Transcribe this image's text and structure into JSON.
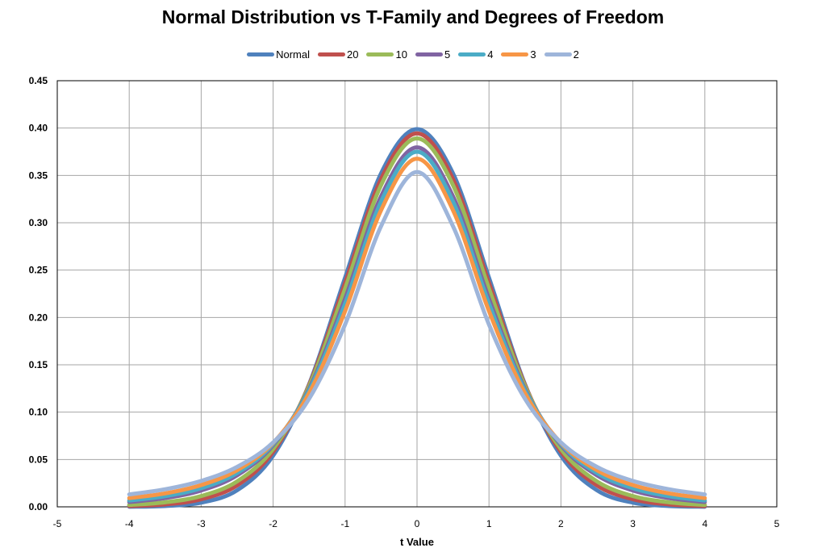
{
  "chart_data": {
    "type": "line",
    "title": "Normal Distribution vs T-Family and Degrees of Freedom",
    "xlabel": "t Value",
    "ylabel": "",
    "xlim": [
      -5,
      5
    ],
    "ylim": [
      0,
      0.45
    ],
    "xticks": [
      "-5",
      "-4",
      "-3",
      "-2",
      "-1",
      "0",
      "1",
      "2",
      "3",
      "4",
      "5"
    ],
    "yticks": [
      "0.00",
      "0.05",
      "0.10",
      "0.15",
      "0.20",
      "0.25",
      "0.30",
      "0.35",
      "0.40",
      "0.45"
    ],
    "grid": true,
    "legend": "top",
    "x": [
      -4,
      -3.5,
      -3,
      -2.5,
      -2,
      -1.5,
      -1,
      -0.5,
      0,
      0.5,
      1,
      1.5,
      2,
      2.5,
      3,
      3.5,
      4
    ],
    "series": [
      {
        "name": "Normal",
        "color": "#4F81BD",
        "values": [
          0.0001,
          0.0009,
          0.0044,
          0.0175,
          0.054,
          0.1295,
          0.242,
          0.3521,
          0.3989,
          0.3521,
          0.242,
          0.1295,
          0.054,
          0.0175,
          0.0044,
          0.0009,
          0.0001
        ]
      },
      {
        "name": "20",
        "color": "#C0504D",
        "values": [
          0.0008,
          0.0026,
          0.008,
          0.0227,
          0.0581,
          0.1288,
          0.2363,
          0.3461,
          0.3944,
          0.3461,
          0.2363,
          0.1288,
          0.0581,
          0.0227,
          0.008,
          0.0026,
          0.0008
        ]
      },
      {
        "name": "10",
        "color": "#9BBB59",
        "values": [
          0.002,
          0.0048,
          0.0114,
          0.0269,
          0.0611,
          0.1274,
          0.2304,
          0.3397,
          0.3891,
          0.3397,
          0.2304,
          0.1274,
          0.0611,
          0.0269,
          0.0114,
          0.0048,
          0.002
        ]
      },
      {
        "name": "5",
        "color": "#8064A2",
        "values": [
          0.0051,
          0.0092,
          0.0173,
          0.0333,
          0.0651,
          0.1245,
          0.2197,
          0.3279,
          0.3796,
          0.3279,
          0.2197,
          0.1245,
          0.0651,
          0.0333,
          0.0173,
          0.0092,
          0.0051
        ]
      },
      {
        "name": "4",
        "color": "#4BACC6",
        "values": [
          0.0067,
          0.0113,
          0.0197,
          0.0357,
          0.0663,
          0.1229,
          0.2147,
          0.3223,
          0.375,
          0.3223,
          0.2147,
          0.1229,
          0.0663,
          0.0357,
          0.0197,
          0.0113,
          0.0067
        ]
      },
      {
        "name": "3",
        "color": "#F79646",
        "values": [
          0.0092,
          0.0142,
          0.023,
          0.0387,
          0.0675,
          0.12,
          0.2067,
          0.3132,
          0.3676,
          0.3132,
          0.2067,
          0.12,
          0.0675,
          0.0387,
          0.023,
          0.0142,
          0.0092
        ]
      },
      {
        "name": "2",
        "color": "#9EB5DA",
        "values": [
          0.0131,
          0.0186,
          0.0274,
          0.0422,
          0.068,
          0.1141,
          0.1925,
          0.2963,
          0.3536,
          0.2963,
          0.1925,
          0.1141,
          0.068,
          0.0422,
          0.0274,
          0.0186,
          0.0131
        ]
      }
    ]
  }
}
